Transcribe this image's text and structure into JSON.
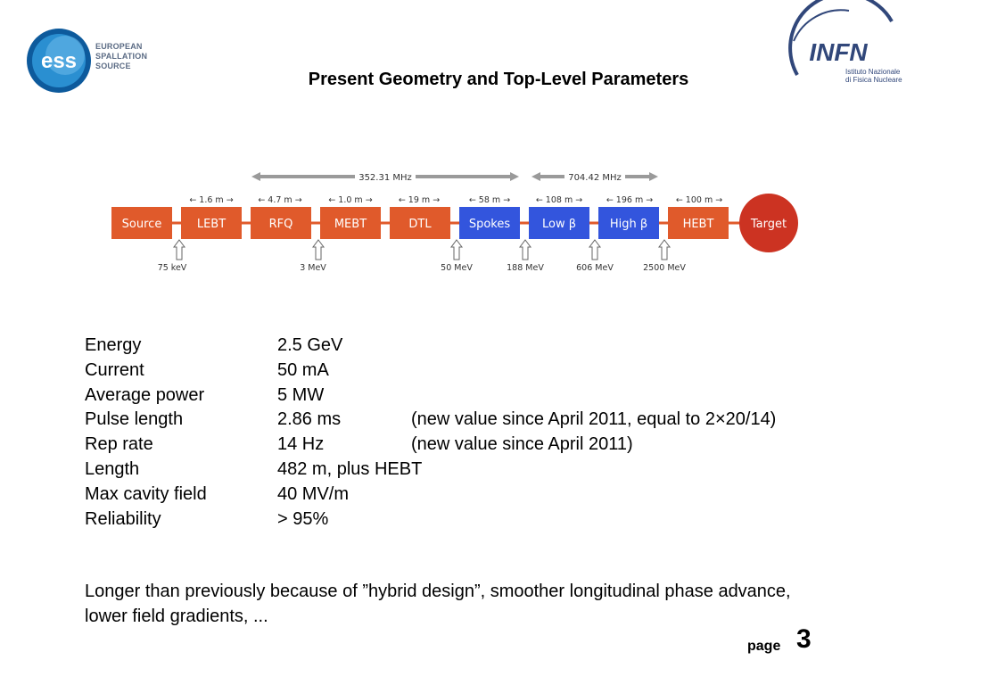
{
  "header": {
    "ess_logo": {
      "icon": "ess-logo-icon",
      "text_lines": [
        "EUROPEAN",
        "SPALLATION",
        "SOURCE"
      ],
      "mark": "ess",
      "colors": [
        "#2a8fd1",
        "#0d5a9c"
      ]
    },
    "title": "Present Geometry and Top-Level Parameters",
    "infn_logo": {
      "icon": "infn-logo-icon",
      "mark": "INFN",
      "text_lines": [
        "Istituto Nazionale",
        "di Fisica Nucleare"
      ],
      "color": "#31477a"
    }
  },
  "linac": {
    "frequency_bands": [
      {
        "label": "352.31 MHz"
      },
      {
        "label": "704.42 MHz"
      }
    ],
    "segment_lengths": [
      "1.6 m",
      "4.7 m",
      "1.0 m",
      "19 m",
      "58 m",
      "108 m",
      "196 m",
      "100 m"
    ],
    "blocks": [
      {
        "label": "Source",
        "color": "#e05a2b"
      },
      {
        "label": "LEBT",
        "color": "#e05a2b"
      },
      {
        "label": "RFQ",
        "color": "#e05a2b"
      },
      {
        "label": "MEBT",
        "color": "#e05a2b"
      },
      {
        "label": "DTL",
        "color": "#e05a2b"
      },
      {
        "label": "Spokes",
        "color": "#3355dd"
      },
      {
        "label": "Low β",
        "color": "#3355dd"
      },
      {
        "label": "High β",
        "color": "#3355dd"
      },
      {
        "label": "HEBT",
        "color": "#e05a2b"
      }
    ],
    "target": {
      "label": "Target",
      "color": "#cc3322"
    },
    "energies": [
      {
        "label": "75 keV"
      },
      {
        "label": "3 MeV"
      },
      {
        "label": "50 MeV"
      },
      {
        "label": "188 MeV"
      },
      {
        "label": "606 MeV"
      },
      {
        "label": "2500 MeV"
      }
    ]
  },
  "params": [
    {
      "label": "Energy",
      "value": "2.5 GeV",
      "note": ""
    },
    {
      "label": "Current",
      "value": "50 mA",
      "note": ""
    },
    {
      "label": "Average power",
      "value": "5 MW",
      "note": ""
    },
    {
      "label": "Pulse length",
      "value": "2.86 ms",
      "note": "(new value since April 2011, equal to 2×20/14)"
    },
    {
      "label": "Rep rate",
      "value": "14 Hz",
      "note": "(new value since April 2011)"
    },
    {
      "label": "Length",
      "value": "482 m, plus HEBT",
      "note": ""
    },
    {
      "label": "Max cavity field",
      "value": "40 MV/m",
      "note": ""
    },
    {
      "label": "Reliability",
      "value": "> 95%",
      "note": ""
    }
  ],
  "footnote": "Longer than previously because of ”hybrid design”, smoother longitudinal phase advance, lower field gradients, ...",
  "page": {
    "label": "page",
    "number": "3"
  }
}
